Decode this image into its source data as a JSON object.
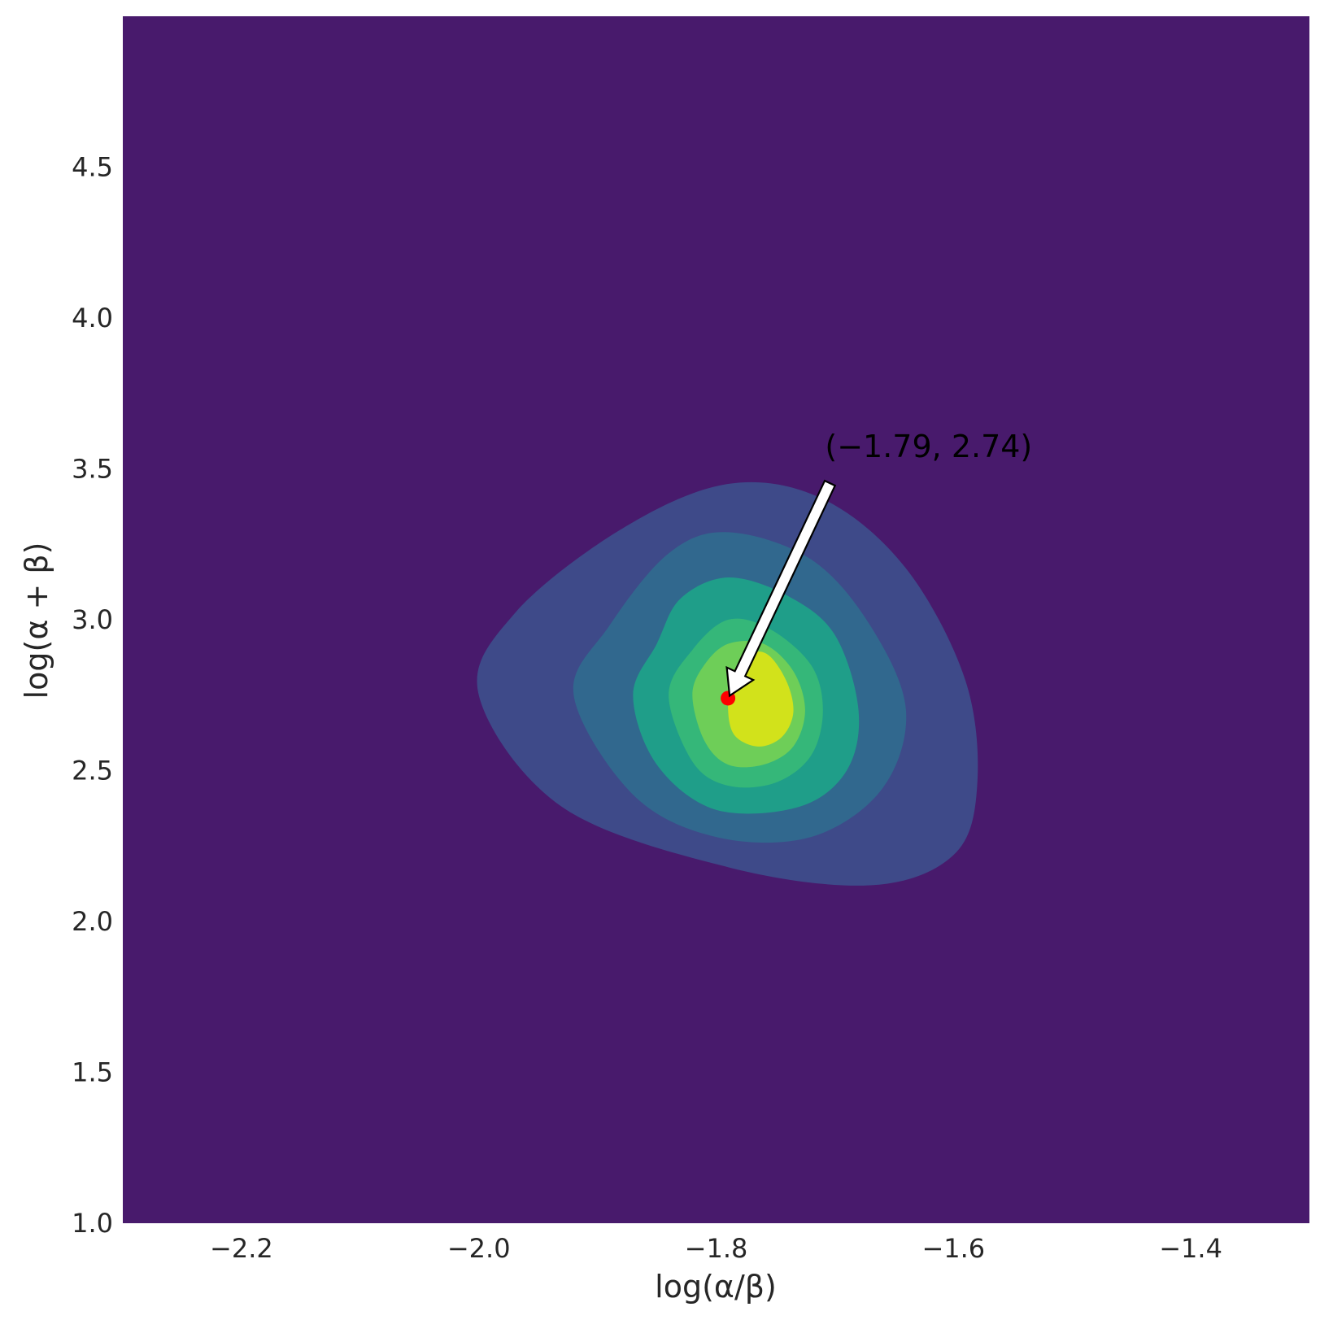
{
  "chart_data": {
    "type": "contour",
    "title": "",
    "xlabel": "log(α/β)",
    "ylabel": "log(α + β)",
    "xlim": [
      -2.3,
      -1.3
    ],
    "ylim": [
      1.0,
      5.0
    ],
    "xticks": [
      -2.2,
      -2.0,
      -1.8,
      -1.6,
      -1.4
    ],
    "xtick_labels": [
      "−2.2",
      "−2.0",
      "−1.8",
      "−1.6",
      "−1.4"
    ],
    "yticks": [
      1.0,
      1.5,
      2.0,
      2.5,
      3.0,
      3.5,
      4.0,
      4.5
    ],
    "ytick_labels": [
      "1.0",
      "1.5",
      "2.0",
      "2.5",
      "3.0",
      "3.5",
      "4.0",
      "4.5"
    ],
    "grid": false,
    "colormap": "viridis",
    "background_color": "#481a6c",
    "levels": [
      {
        "color": "#3e4a89",
        "outline": [
          [
            -2.0,
            2.75
          ],
          [
            -1.97,
            3.02
          ],
          [
            -1.88,
            3.3
          ],
          [
            -1.79,
            3.45
          ],
          [
            -1.71,
            3.4
          ],
          [
            -1.64,
            3.17
          ],
          [
            -1.59,
            2.8
          ],
          [
            -1.58,
            2.45
          ],
          [
            -1.6,
            2.22
          ],
          [
            -1.67,
            2.12
          ],
          [
            -1.79,
            2.18
          ],
          [
            -1.93,
            2.38
          ]
        ]
      },
      {
        "color": "#31688e",
        "outline": [
          [
            -1.92,
            2.75
          ],
          [
            -1.89,
            2.98
          ],
          [
            -1.84,
            3.22
          ],
          [
            -1.79,
            3.29
          ],
          [
            -1.72,
            3.2
          ],
          [
            -1.67,
            2.98
          ],
          [
            -1.64,
            2.7
          ],
          [
            -1.66,
            2.44
          ],
          [
            -1.72,
            2.28
          ],
          [
            -1.8,
            2.28
          ],
          [
            -1.87,
            2.42
          ]
        ]
      },
      {
        "color": "#1f9e89",
        "outline": [
          [
            -1.87,
            2.75
          ],
          [
            -1.85,
            2.92
          ],
          [
            -1.83,
            3.07
          ],
          [
            -1.79,
            3.14
          ],
          [
            -1.74,
            3.08
          ],
          [
            -1.7,
            2.95
          ],
          [
            -1.68,
            2.7
          ],
          [
            -1.69,
            2.5
          ],
          [
            -1.73,
            2.38
          ],
          [
            -1.8,
            2.37
          ],
          [
            -1.85,
            2.52
          ]
        ]
      },
      {
        "color": "#35b779",
        "outline": [
          [
            -1.84,
            2.75
          ],
          [
            -1.82,
            2.9
          ],
          [
            -1.79,
            3.0
          ],
          [
            -1.755,
            2.97
          ],
          [
            -1.72,
            2.85
          ],
          [
            -1.71,
            2.7
          ],
          [
            -1.72,
            2.55
          ],
          [
            -1.75,
            2.46
          ],
          [
            -1.79,
            2.45
          ],
          [
            -1.82,
            2.53
          ]
        ]
      },
      {
        "color": "#6ece58",
        "outline": [
          [
            -1.82,
            2.75
          ],
          [
            -1.81,
            2.85
          ],
          [
            -1.79,
            2.92
          ],
          [
            -1.76,
            2.92
          ],
          [
            -1.735,
            2.83
          ],
          [
            -1.725,
            2.7
          ],
          [
            -1.735,
            2.58
          ],
          [
            -1.76,
            2.52
          ],
          [
            -1.79,
            2.52
          ],
          [
            -1.81,
            2.6
          ]
        ]
      },
      {
        "color": "#d2e21b",
        "outline": [
          [
            -1.79,
            2.72
          ],
          [
            -1.785,
            2.83
          ],
          [
            -1.77,
            2.89
          ],
          [
            -1.755,
            2.88
          ],
          [
            -1.74,
            2.79
          ],
          [
            -1.735,
            2.69
          ],
          [
            -1.745,
            2.61
          ],
          [
            -1.765,
            2.58
          ],
          [
            -1.785,
            2.62
          ]
        ]
      }
    ],
    "mode_point": {
      "x": -1.79,
      "y": 2.74,
      "color": "#ff0000"
    },
    "annotation": {
      "text": "(−1.79, 2.74)",
      "point_x": -1.79,
      "point_y": 2.74,
      "text_x": -1.7,
      "text_y": 3.52
    }
  }
}
